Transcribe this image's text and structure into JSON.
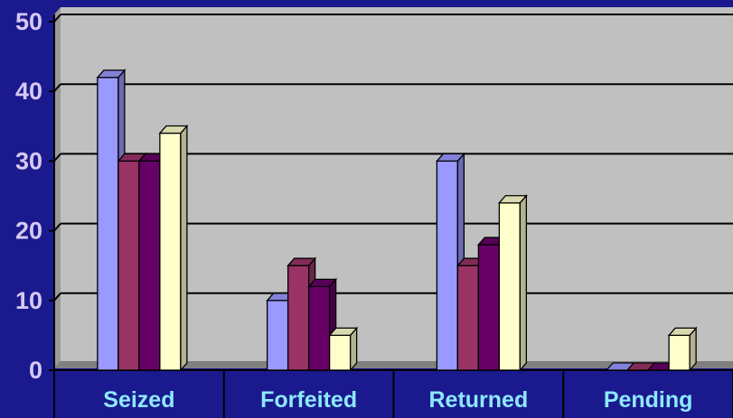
{
  "chart_data": {
    "type": "bar",
    "categories": [
      "Seized",
      "Forfeited",
      "Returned",
      "Pending"
    ],
    "series": [
      {
        "color": "#9999ff",
        "values": [
          42,
          10,
          30,
          0
        ]
      },
      {
        "color": "#993366",
        "values": [
          30,
          15,
          15,
          0
        ]
      },
      {
        "color": "#660066",
        "values": [
          30,
          12,
          18,
          0
        ]
      },
      {
        "color": "#ffffcc",
        "values": [
          34,
          5,
          24,
          5
        ]
      }
    ],
    "yticks": [
      "0",
      "10",
      "20",
      "30",
      "40",
      "50"
    ],
    "ylim": [
      0,
      50
    ],
    "grid": true,
    "colors": {
      "background": "#1a1a8e",
      "plot_area": "#c0c0c0",
      "floor": "#808080",
      "ytick_text": "#d7c8f2",
      "xtick_text": "#8ee8ff"
    }
  }
}
